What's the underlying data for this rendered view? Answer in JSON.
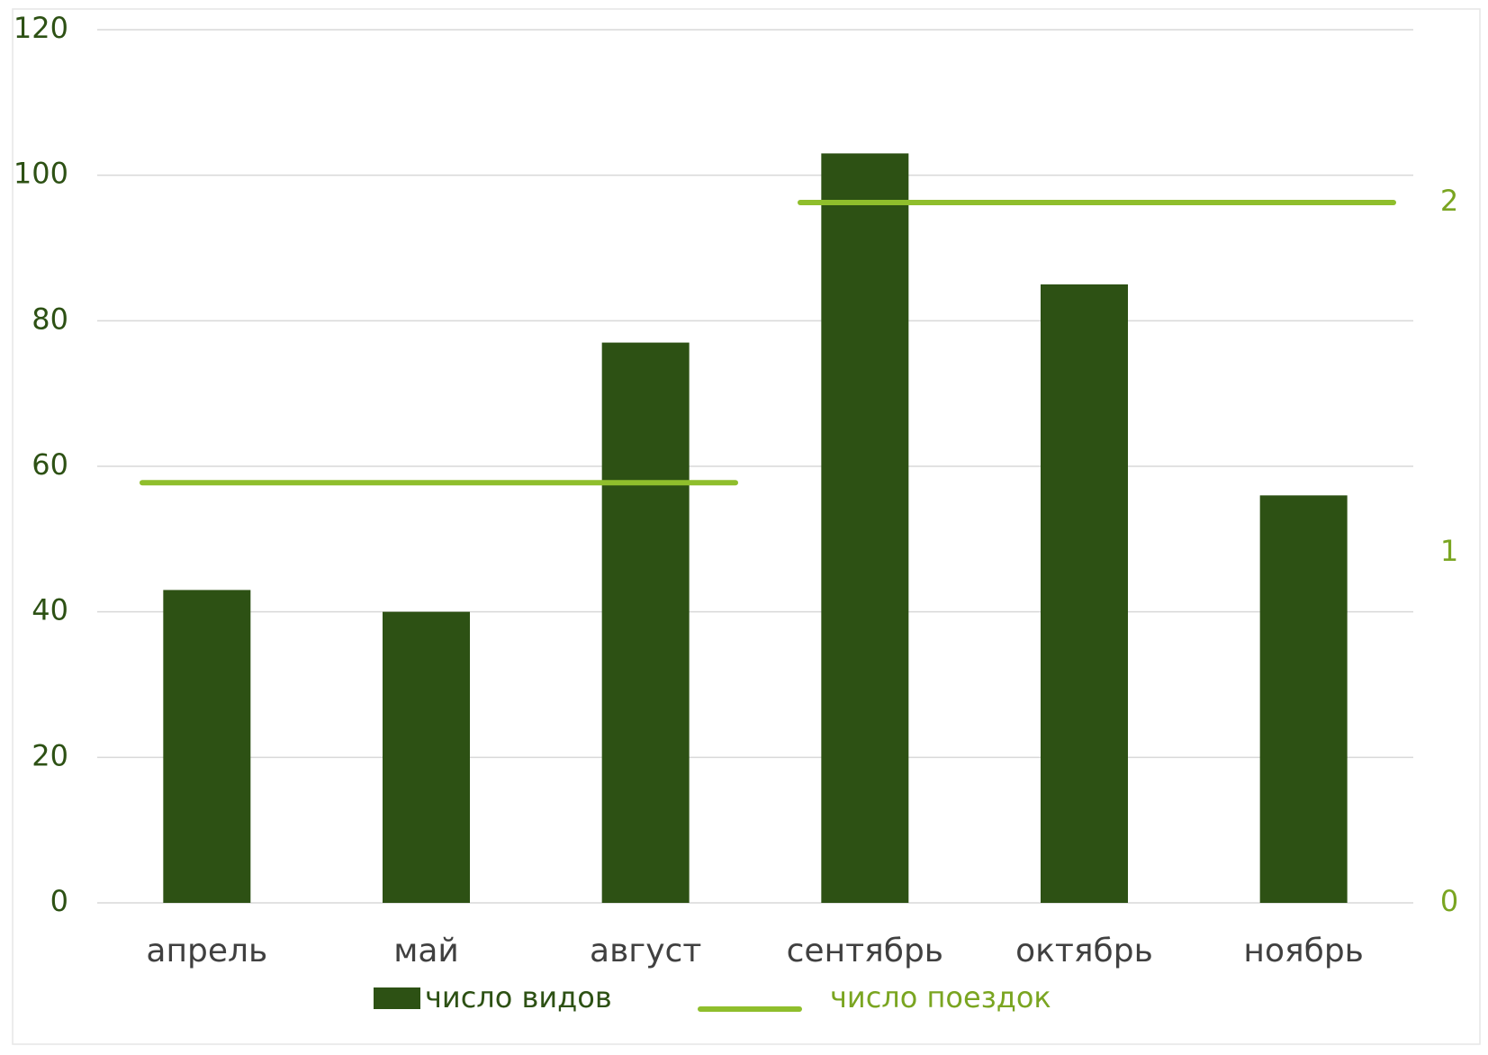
{
  "chart_data": {
    "type": "bar",
    "categories": [
      "апрель",
      "май",
      "август",
      "сентябрь",
      "октябрь",
      "ноябрь"
    ],
    "series": [
      {
        "name": "число видов",
        "type": "bar",
        "axis": "left",
        "values": [
          43,
          40,
          77,
          103,
          85,
          56
        ]
      },
      {
        "name": "число поездок",
        "type": "line",
        "axis": "right",
        "values": [
          1.2,
          1.2,
          1.2,
          2,
          2,
          2
        ]
      }
    ],
    "y_left": {
      "min": 0,
      "max": 120,
      "ticks": [
        "0",
        "20",
        "40",
        "60",
        "80",
        "100",
        "120"
      ]
    },
    "y_right": {
      "min": 0,
      "max": 2.5,
      "ticks": [
        "0",
        "1",
        "2"
      ]
    },
    "grid": true,
    "legend": "bottom"
  },
  "colors": {
    "bar": "#2d5114",
    "line": "#8fbe2c",
    "left_axis_text": "#2d5114",
    "right_axis_text": "#7aa521",
    "category_text": "#404040",
    "grid": "#d9d9d9"
  }
}
